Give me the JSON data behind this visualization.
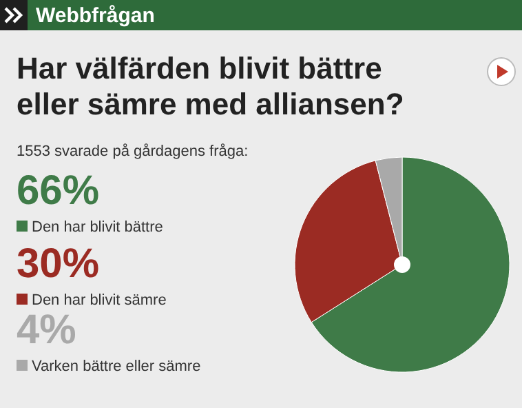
{
  "chart_data": {
    "type": "pie",
    "title": "Har välfärden blivit bättre eller sämre med alliansen?",
    "subtitle": "1553 svarade på gårdagens fråga:",
    "annotations": [
      "Webbfrågan"
    ],
    "categories": [
      "Den har blivit bättre",
      "Den har blivit sämre",
      "Varken bättre eller sämre"
    ],
    "values": [
      66,
      30,
      4
    ],
    "value_labels": [
      "66%",
      "30%",
      "4%"
    ],
    "colors": [
      "#3f7b48",
      "#9b2b23",
      "#a9a9a9"
    ],
    "legend": "left"
  }
}
